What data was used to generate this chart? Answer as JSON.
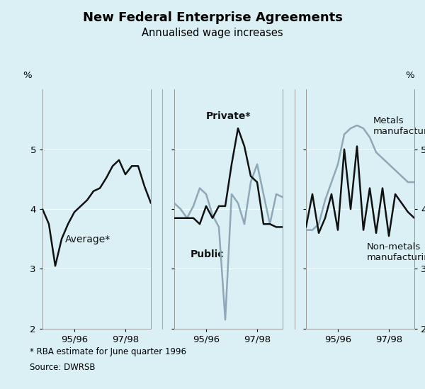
{
  "title": "New Federal Enterprise Agreements",
  "subtitle": "Annualised wage increases",
  "footnote1": "* RBA estimate for June quarter 1996",
  "footnote2": "Source: DWRSB",
  "ylabel_left": "%",
  "ylabel_right": "%",
  "ylim": [
    2,
    6
  ],
  "yticks": [
    2,
    3,
    4,
    5
  ],
  "background_color": "#daf0f5",
  "panel1_label": "Average*",
  "panel2_label1": "Private*",
  "panel2_label2": "Public",
  "panel3_label1": "Metals\nmanufacturing",
  "panel3_label2": "Non-metals\nmanufacturing",
  "avg_y": [
    4.0,
    3.75,
    3.05,
    3.5,
    3.75,
    3.95,
    4.05,
    4.15,
    4.3,
    4.35,
    4.52,
    4.72,
    4.82,
    4.58,
    4.72,
    4.72,
    4.38,
    4.1
  ],
  "priv_y": [
    3.85,
    3.85,
    3.85,
    3.85,
    3.75,
    4.05,
    3.85,
    4.05,
    4.05,
    4.75,
    5.35,
    5.05,
    4.55,
    4.45,
    3.75,
    3.75,
    3.7,
    3.7
  ],
  "pub_y": [
    4.1,
    4.0,
    3.85,
    4.05,
    4.35,
    4.25,
    3.9,
    3.7,
    2.15,
    4.25,
    4.1,
    3.75,
    4.45,
    4.75,
    4.25,
    3.75,
    4.25,
    4.2
  ],
  "met_y": [
    3.65,
    3.65,
    3.75,
    4.15,
    4.45,
    4.75,
    5.25,
    5.35,
    5.4,
    5.35,
    5.2,
    4.95,
    4.85,
    4.75,
    4.65,
    4.55,
    4.45,
    4.45
  ],
  "nonmet_y": [
    3.7,
    4.25,
    3.6,
    3.85,
    4.25,
    3.65,
    5.0,
    4.0,
    5.05,
    3.65,
    4.35,
    3.6,
    4.35,
    3.55,
    4.25,
    4.1,
    3.95,
    3.85
  ],
  "black_color": "#111111",
  "gray_color": "#8fa8b8",
  "title_fontsize": 13,
  "subtitle_fontsize": 10.5,
  "tick_fontsize": 9.5,
  "annot_fontsize": 10
}
